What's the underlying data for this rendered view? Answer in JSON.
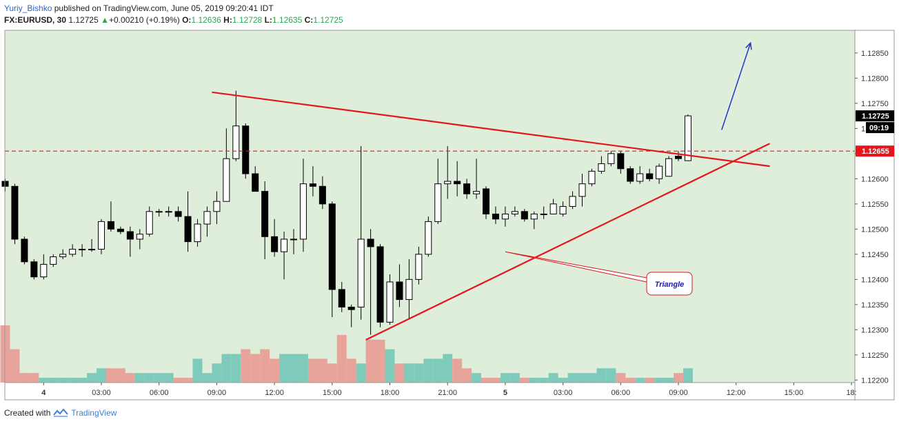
{
  "header": {
    "author": "Yuriy_Bishko",
    "published": "published on TradingView.com, June 05, 2019 09:20:41 IDT",
    "symbol": "FX:EURUSD, 30",
    "last": "1.12725",
    "change_arrow": "▲",
    "change": "+0.00210 (+0.19%)",
    "open_label": "O:",
    "open": "1.12636",
    "high_label": "H:",
    "high": "1.12728",
    "low_label": "L:",
    "low": "1.12635",
    "close_label": "C:",
    "close": "1.12725"
  },
  "footer": {
    "created_with": "Created with",
    "brand": "TradingView",
    "logo_icon": "tradingview-logo-icon"
  },
  "colors": {
    "background": "#deeedb",
    "up_body": "#ffffff",
    "down_body": "#000000",
    "vol_up": "#7fcbbb",
    "vol_down": "#e8a39a",
    "trendline": "#e8141b",
    "arrow": "#1f36c9",
    "annotation_border": "#d9141b",
    "annotation_text": "#1a1ab8",
    "price_tag": "#e8141b"
  },
  "chart_data": {
    "type": "candlestick",
    "symbol": "FX:EURUSD",
    "timeframe": "30",
    "ylim": [
      1.12195,
      1.12895
    ],
    "y_ticks": [
      "1.12850",
      "1.12800",
      "1.12750",
      "1.12700",
      "1.12650",
      "1.12600",
      "1.12550",
      "1.12500",
      "1.12450",
      "1.12400",
      "1.12350",
      "1.12300",
      "1.12250",
      "1.12200"
    ],
    "x_ticks": [
      {
        "label": "4",
        "bar": 4,
        "bold": true
      },
      {
        "label": "03:00",
        "bar": 10
      },
      {
        "label": "06:00",
        "bar": 16
      },
      {
        "label": "09:00",
        "bar": 22
      },
      {
        "label": "12:00",
        "bar": 28
      },
      {
        "label": "15:00",
        "bar": 34
      },
      {
        "label": "18:00",
        "bar": 40
      },
      {
        "label": "21:00",
        "bar": 46
      },
      {
        "label": "5",
        "bar": 52,
        "bold": true
      },
      {
        "label": "03:00",
        "bar": 58
      },
      {
        "label": "06:00",
        "bar": 64
      },
      {
        "label": "09:00",
        "bar": 70
      },
      {
        "label": "12:00",
        "bar": 76
      },
      {
        "label": "15:00",
        "bar": 82
      },
      {
        "label": "18:",
        "bar": 88
      }
    ],
    "last_price_label": "1.12725",
    "countdown_label": "09:19",
    "level_label": "1.12655",
    "level_value": 1.12655,
    "ohlc": [
      [
        1.12595,
        1.126,
        1.12575,
        1.12585
      ],
      [
        1.12585,
        1.1259,
        1.1247,
        1.1248
      ],
      [
        1.1248,
        1.12485,
        1.1243,
        1.12435
      ],
      [
        1.12435,
        1.1244,
        1.124,
        1.12405
      ],
      [
        1.12405,
        1.1245,
        1.124,
        1.1243
      ],
      [
        1.1243,
        1.1245,
        1.12425,
        1.12445
      ],
      [
        1.12445,
        1.1246,
        1.1244,
        1.1245
      ],
      [
        1.1245,
        1.1247,
        1.12445,
        1.1246
      ],
      [
        1.1246,
        1.1247,
        1.12445,
        1.1246
      ],
      [
        1.1246,
        1.1248,
        1.12455,
        1.1246
      ],
      [
        1.1246,
        1.1252,
        1.1245,
        1.12515
      ],
      [
        1.12515,
        1.12555,
        1.12495,
        1.125
      ],
      [
        1.125,
        1.12505,
        1.1249,
        1.12495
      ],
      [
        1.12495,
        1.12505,
        1.12445,
        1.1248
      ],
      [
        1.1248,
        1.125,
        1.1246,
        1.1249
      ],
      [
        1.1249,
        1.12545,
        1.12485,
        1.12535
      ],
      [
        1.12535,
        1.1254,
        1.12525,
        1.12535
      ],
      [
        1.12535,
        1.12545,
        1.12525,
        1.12535
      ],
      [
        1.12535,
        1.12545,
        1.12515,
        1.12525
      ],
      [
        1.12525,
        1.12575,
        1.12455,
        1.12475
      ],
      [
        1.12475,
        1.1252,
        1.12465,
        1.1251
      ],
      [
        1.1251,
        1.12545,
        1.12485,
        1.12535
      ],
      [
        1.12535,
        1.12575,
        1.1251,
        1.12555
      ],
      [
        1.12555,
        1.127,
        1.12555,
        1.1264
      ],
      [
        1.1264,
        1.12775,
        1.12635,
        1.12705
      ],
      [
        1.12705,
        1.1271,
        1.126,
        1.1261
      ],
      [
        1.1261,
        1.12625,
        1.12575,
        1.12575
      ],
      [
        1.12575,
        1.12595,
        1.1244,
        1.12485
      ],
      [
        1.12485,
        1.1252,
        1.12445,
        1.12455
      ],
      [
        1.12455,
        1.12495,
        1.124,
        1.1248
      ],
      [
        1.1248,
        1.125,
        1.1245,
        1.1248
      ],
      [
        1.1248,
        1.1264,
        1.12455,
        1.1259
      ],
      [
        1.1259,
        1.12625,
        1.12565,
        1.12585
      ],
      [
        1.12585,
        1.12605,
        1.1254,
        1.1255
      ],
      [
        1.1255,
        1.12555,
        1.12325,
        1.1238
      ],
      [
        1.1238,
        1.12395,
        1.12335,
        1.12345
      ],
      [
        1.12345,
        1.1235,
        1.12305,
        1.1234
      ],
      [
        1.12345,
        1.12665,
        1.1232,
        1.1248
      ],
      [
        1.1248,
        1.125,
        1.1229,
        1.12465
      ],
      [
        1.12465,
        1.1247,
        1.12305,
        1.12315
      ],
      [
        1.12315,
        1.1241,
        1.1231,
        1.12395
      ],
      [
        1.12395,
        1.1243,
        1.12345,
        1.1236
      ],
      [
        1.1236,
        1.1244,
        1.1232,
        1.124
      ],
      [
        1.124,
        1.12465,
        1.1239,
        1.1245
      ],
      [
        1.1245,
        1.12525,
        1.12445,
        1.12515
      ],
      [
        1.12515,
        1.1264,
        1.1251,
        1.1259
      ],
      [
        1.1259,
        1.12665,
        1.1256,
        1.12595
      ],
      [
        1.12595,
        1.12635,
        1.12565,
        1.1259
      ],
      [
        1.1259,
        1.126,
        1.1256,
        1.1257
      ],
      [
        1.1257,
        1.1264,
        1.1256,
        1.12575
      ],
      [
        1.1258,
        1.12585,
        1.1252,
        1.1253
      ],
      [
        1.1253,
        1.12545,
        1.1251,
        1.1252
      ],
      [
        1.1252,
        1.12545,
        1.12505,
        1.1253
      ],
      [
        1.1253,
        1.12545,
        1.12525,
        1.12535
      ],
      [
        1.12535,
        1.1254,
        1.12515,
        1.1252
      ],
      [
        1.1252,
        1.12535,
        1.125,
        1.1253
      ],
      [
        1.1253,
        1.12545,
        1.1252,
        1.1253
      ],
      [
        1.1253,
        1.1256,
        1.1253,
        1.1255
      ],
      [
        1.1253,
        1.12555,
        1.12525,
        1.12545
      ],
      [
        1.12545,
        1.12575,
        1.1254,
        1.12565
      ],
      [
        1.12565,
        1.1261,
        1.12545,
        1.1259
      ],
      [
        1.1259,
        1.1262,
        1.12585,
        1.12615
      ],
      [
        1.12615,
        1.12645,
        1.1261,
        1.1263
      ],
      [
        1.1263,
        1.12655,
        1.12625,
        1.1265
      ],
      [
        1.1265,
        1.12655,
        1.1261,
        1.1262
      ],
      [
        1.1262,
        1.12625,
        1.1259,
        1.12595
      ],
      [
        1.12595,
        1.12625,
        1.1259,
        1.1261
      ],
      [
        1.1261,
        1.1262,
        1.12595,
        1.126
      ],
      [
        1.126,
        1.1263,
        1.1259,
        1.12625
      ],
      [
        1.12605,
        1.12645,
        1.12605,
        1.1264
      ],
      [
        1.12645,
        1.12655,
        1.12635,
        1.1264
      ],
      [
        1.12636,
        1.12728,
        1.12635,
        1.12725
      ]
    ],
    "volume": [
      12,
      7,
      2,
      2,
      1,
      1,
      1,
      1,
      1,
      2,
      3,
      3,
      3,
      2,
      2,
      2,
      2,
      2,
      1,
      1,
      5,
      2,
      4,
      6,
      6,
      7,
      6,
      7,
      5,
      6,
      6,
      6,
      5,
      5,
      4,
      10,
      5,
      4,
      9,
      9,
      7,
      4,
      4,
      4,
      5,
      5,
      6,
      5,
      3,
      2,
      1,
      1,
      2,
      2,
      1,
      1,
      1,
      2,
      1,
      2,
      2,
      2,
      3,
      3,
      2,
      1,
      1,
      1,
      1,
      1,
      2,
      3
    ]
  },
  "annotations": {
    "triangle_label": "Triangle",
    "downtrend_line": {
      "from": {
        "bar": 21.5,
        "price": 1.12772
      },
      "to": {
        "bar": 79.5,
        "price": 1.12625
      }
    },
    "uptrend_line": {
      "from": {
        "bar": 37.5,
        "price": 1.1228
      },
      "to": {
        "bar": 79.5,
        "price": 1.1267
      }
    },
    "callout_target": {
      "bar": 52,
      "price": 1.12455
    },
    "arrow": {
      "from": {
        "bar": 74.5,
        "price": 1.12697
      },
      "to": {
        "bar": 77.5,
        "price": 1.1287
      }
    }
  }
}
